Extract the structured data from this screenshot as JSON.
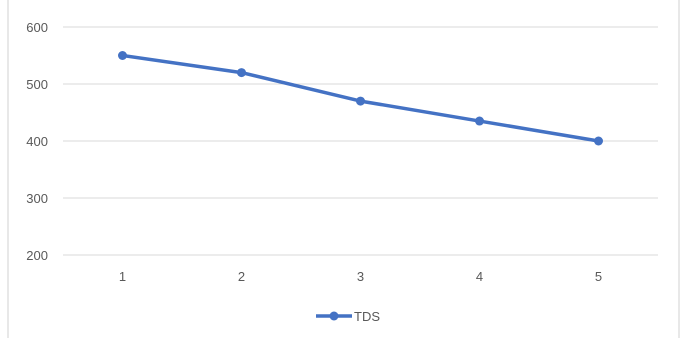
{
  "chart_data": {
    "type": "line",
    "title": "",
    "xlabel": "",
    "ylabel": "",
    "categories": [
      "1",
      "2",
      "3",
      "4",
      "5"
    ],
    "series": [
      {
        "name": "TDS",
        "values": [
          550,
          520,
          470,
          435,
          400
        ],
        "color": "#4472C4"
      }
    ],
    "ylim": [
      200,
      600
    ],
    "yticks": [
      "200",
      "300",
      "400",
      "500",
      "600"
    ],
    "grid": true,
    "legend": "bottom-center"
  }
}
